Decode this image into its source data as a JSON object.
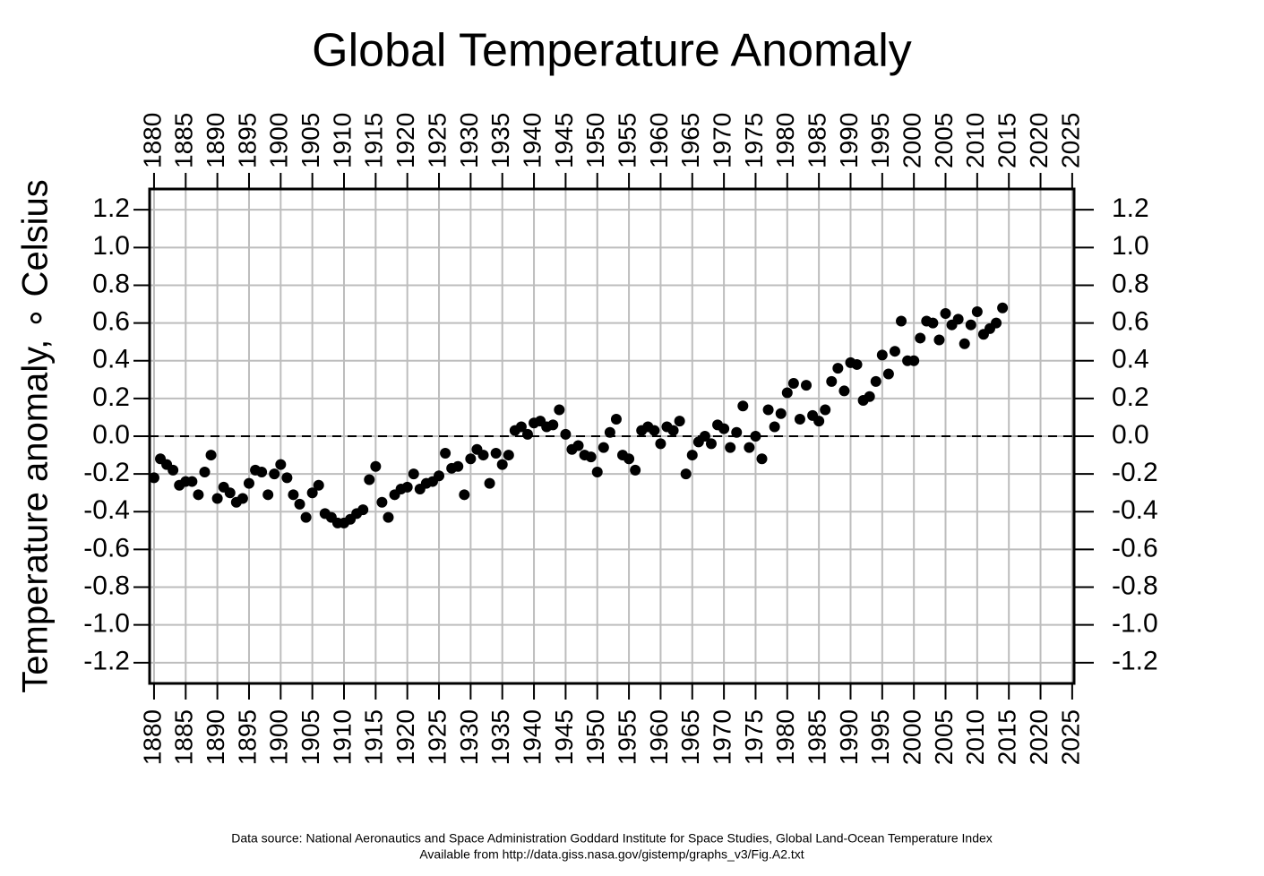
{
  "chart_data": {
    "type": "scatter",
    "title": "Global Temperature Anomaly",
    "y_label": "Temperature anomaly, ∘ Celsius",
    "source": [
      "Data source: National Aeronautics and Space Administration Goddard Institute for Space Studies, Global Land-Ocean Temperature Index",
      "Available from http://data.giss.nasa.gov/gistemp/graphs_v3/Fig.A2.txt"
    ],
    "x": [
      1880,
      1881,
      1882,
      1883,
      1884,
      1885,
      1886,
      1887,
      1888,
      1889,
      1890,
      1891,
      1892,
      1893,
      1894,
      1895,
      1896,
      1897,
      1898,
      1899,
      1900,
      1901,
      1902,
      1903,
      1904,
      1905,
      1906,
      1907,
      1908,
      1909,
      1910,
      1911,
      1912,
      1913,
      1914,
      1915,
      1916,
      1917,
      1918,
      1919,
      1920,
      1921,
      1922,
      1923,
      1924,
      1925,
      1926,
      1927,
      1928,
      1929,
      1930,
      1931,
      1932,
      1933,
      1934,
      1935,
      1936,
      1937,
      1938,
      1939,
      1940,
      1941,
      1942,
      1943,
      1944,
      1945,
      1946,
      1947,
      1948,
      1949,
      1950,
      1951,
      1952,
      1953,
      1954,
      1955,
      1956,
      1957,
      1958,
      1959,
      1960,
      1961,
      1962,
      1963,
      1964,
      1965,
      1966,
      1967,
      1968,
      1969,
      1970,
      1971,
      1972,
      1973,
      1974,
      1975,
      1976,
      1977,
      1978,
      1979,
      1980,
      1981,
      1982,
      1983,
      1984,
      1985,
      1986,
      1987,
      1988,
      1989,
      1990,
      1991,
      1992,
      1993,
      1994,
      1995,
      1996,
      1997,
      1998,
      1999,
      2000,
      2001,
      2002,
      2003,
      2004,
      2005,
      2006,
      2007,
      2008,
      2009,
      2010,
      2011,
      2012,
      2013,
      2014
    ],
    "series": [
      {
        "color": "#000000",
        "values": [
          -0.22,
          -0.12,
          -0.15,
          -0.18,
          -0.26,
          -0.24,
          -0.24,
          -0.31,
          -0.19,
          -0.1,
          -0.33,
          -0.27,
          -0.3,
          -0.35,
          -0.33,
          -0.25,
          -0.18,
          -0.19,
          -0.31,
          -0.2,
          -0.15,
          -0.22,
          -0.31,
          -0.36,
          -0.43,
          -0.3,
          -0.26,
          -0.41,
          -0.43,
          -0.46,
          -0.46,
          -0.44,
          -0.41,
          -0.39,
          -0.23,
          -0.16,
          -0.35,
          -0.43,
          -0.31,
          -0.28,
          -0.27,
          -0.2,
          -0.28,
          -0.25,
          -0.24,
          -0.21,
          -0.09,
          -0.17,
          -0.16,
          -0.31,
          -0.12,
          -0.07,
          -0.1,
          -0.25,
          -0.09,
          -0.15,
          -0.1,
          0.03,
          0.05,
          0.01,
          0.07,
          0.08,
          0.05,
          0.06,
          0.14,
          0.01,
          -0.07,
          -0.05,
          -0.1,
          -0.11,
          -0.19,
          -0.06,
          0.02,
          0.09,
          -0.1,
          -0.12,
          -0.18,
          0.03,
          0.05,
          0.03,
          -0.04,
          0.05,
          0.03,
          0.08,
          -0.2,
          -0.1,
          -0.03,
          0.0,
          -0.04,
          0.06,
          0.04,
          -0.06,
          0.02,
          0.16,
          -0.06,
          0.0,
          -0.12,
          0.14,
          0.05,
          0.12,
          0.23,
          0.28,
          0.09,
          0.27,
          0.11,
          0.08,
          0.14,
          0.29,
          0.36,
          0.24,
          0.39,
          0.38,
          0.19,
          0.21,
          0.29,
          0.43,
          0.33,
          0.45,
          0.61,
          0.4,
          0.4,
          0.52,
          0.61,
          0.6,
          0.51,
          0.65,
          0.59,
          0.62,
          0.49,
          0.59,
          0.66,
          0.54,
          0.57,
          0.6,
          0.68
        ]
      }
    ],
    "xlim": [
      1879.3,
      2025.3
    ],
    "ylim": [
      -1.31,
      1.31
    ],
    "xticks": [
      1880,
      1885,
      1890,
      1895,
      1900,
      1905,
      1910,
      1915,
      1920,
      1925,
      1930,
      1935,
      1940,
      1945,
      1950,
      1955,
      1960,
      1965,
      1970,
      1975,
      1980,
      1985,
      1990,
      1995,
      2000,
      2005,
      2010,
      2015,
      2020,
      2025
    ],
    "yticks": [
      {
        "value": -1.2,
        "label": "-1.2"
      },
      {
        "value": -1,
        "label": "-1.0"
      },
      -0.8,
      -0.6,
      -0.4,
      -0.2,
      {
        "value": 0,
        "label": "0.0"
      },
      0.2,
      0.4,
      0.6,
      0.8,
      {
        "value": 1,
        "label": "1.0"
      },
      1.2
    ],
    "reference_line": 0,
    "grid": true
  }
}
